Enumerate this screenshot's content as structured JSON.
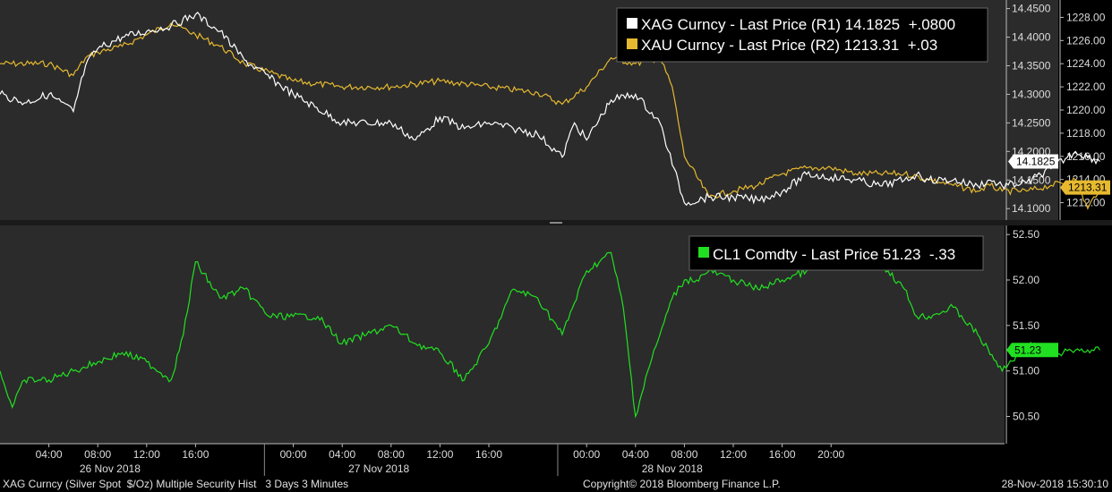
{
  "colors": {
    "background": "#000000",
    "panel": "#2b2b2b",
    "silver": "#ffffff",
    "gold": "#e6b92f",
    "oil": "#21e021"
  },
  "chart_data": [
    {
      "type": "line",
      "panel": "top",
      "grid": false,
      "legend_position": "top-right",
      "legend": [
        {
          "text": "XAG Curncy - Last Price (R1) 14.1825  +.0800",
          "swatch": "silver"
        },
        {
          "text": "XAU Curncy - Last Price (R2) 1213.31  +.03",
          "swatch": "gold"
        }
      ],
      "axis_r1": {
        "range": [
          14.08,
          14.465
        ],
        "ticks": [
          "14.4500",
          "14.4000",
          "14.3500",
          "14.3000",
          "14.2500",
          "14.2000",
          "14.1500",
          "14.1000"
        ]
      },
      "axis_r2": {
        "range": [
          1210.5,
          1229.5
        ],
        "ticks": [
          "1228.00",
          "1226.00",
          "1224.00",
          "1222.00",
          "1220.00",
          "1218.00",
          "1216.00",
          "1214.00",
          "1212.00"
        ]
      },
      "last_labels": [
        {
          "text": "14.1825",
          "series": "silver"
        },
        {
          "text": "1213.31",
          "series": "gold"
        }
      ],
      "series": [
        {
          "name": "XAG Curncy",
          "key": "silver",
          "axis": "R1",
          "x": [
            0,
            2,
            4,
            6,
            7,
            8,
            10,
            12,
            14,
            16,
            18,
            20,
            24,
            28,
            32,
            34,
            36,
            38,
            40,
            42,
            44,
            46,
            47,
            48,
            50,
            52,
            54,
            56,
            58,
            60,
            62,
            64,
            66,
            68,
            70,
            72,
            74,
            75,
            76,
            78,
            80,
            81,
            82,
            84,
            86,
            88,
            90
          ],
          "y": [
            14.3,
            14.285,
            14.3,
            14.27,
            14.35,
            14.38,
            14.4,
            14.41,
            14.42,
            14.44,
            14.41,
            14.36,
            14.3,
            14.25,
            14.25,
            14.22,
            14.26,
            14.24,
            14.25,
            14.24,
            14.23,
            14.19,
            14.25,
            14.22,
            14.29,
            14.3,
            14.25,
            14.11,
            14.12,
            14.12,
            14.115,
            14.13,
            14.16,
            14.155,
            14.15,
            14.14,
            14.15,
            14.16,
            14.15,
            14.15,
            14.14,
            14.15,
            14.14,
            14.145,
            14.17,
            14.2,
            14.1825
          ]
        },
        {
          "name": "XAU Curncy",
          "key": "gold",
          "axis": "R2",
          "x": [
            0,
            4,
            6,
            7,
            8,
            10,
            12,
            14,
            16,
            18,
            20,
            24,
            28,
            32,
            36,
            40,
            44,
            46,
            48,
            50,
            52,
            54,
            55,
            56,
            58,
            60,
            62,
            64,
            66,
            68,
            70,
            72,
            74,
            76,
            78,
            80,
            81,
            82,
            84,
            86,
            88,
            89,
            90
          ],
          "y": [
            1224.0,
            1224.0,
            1223.0,
            1224.5,
            1225.0,
            1225.5,
            1226.5,
            1227.5,
            1226.5,
            1225.5,
            1224.0,
            1222.5,
            1222.0,
            1222.0,
            1222.5,
            1222.0,
            1221.5,
            1220.5,
            1222.0,
            1224.5,
            1224.0,
            1224.5,
            1222.0,
            1216.0,
            1212.5,
            1213.0,
            1213.5,
            1214.5,
            1215.0,
            1215.0,
            1214.5,
            1214.5,
            1214.5,
            1214.0,
            1213.5,
            1213.0,
            1213.5,
            1213.0,
            1213.0,
            1213.5,
            1214.0,
            1211.5,
            1213.31
          ]
        }
      ]
    },
    {
      "type": "line",
      "panel": "bottom",
      "grid": false,
      "legend_position": "top-right",
      "legend": [
        {
          "text": "CL1 Comdty - Last Price 51.23  -.33",
          "swatch": "oil"
        }
      ],
      "axis": {
        "range": [
          50.2,
          52.6
        ],
        "ticks": [
          "52.50",
          "52.00",
          "51.50",
          "51.00",
          "50.50"
        ]
      },
      "last_labels": [
        {
          "text": "51.23",
          "series": "oil"
        }
      ],
      "series": [
        {
          "name": "CL1 Comdty",
          "key": "oil",
          "x": [
            0,
            1,
            2,
            4,
            6,
            8,
            10,
            12,
            14,
            15,
            16,
            18,
            20,
            22,
            24,
            26,
            28,
            30,
            32,
            34,
            36,
            38,
            40,
            42,
            44,
            46,
            48,
            50,
            51,
            52,
            53,
            54,
            55,
            56,
            57,
            58,
            60,
            62,
            64,
            66,
            68,
            70,
            72,
            74,
            75,
            76,
            78,
            80,
            82,
            84,
            86,
            87,
            88,
            90
          ],
          "y": [
            51.0,
            50.6,
            50.9,
            50.9,
            51.0,
            51.1,
            51.2,
            51.1,
            50.9,
            51.4,
            52.2,
            51.8,
            51.9,
            51.6,
            51.6,
            51.6,
            51.3,
            51.4,
            51.5,
            51.3,
            51.2,
            50.9,
            51.3,
            51.9,
            51.8,
            51.4,
            52.1,
            52.3,
            51.7,
            50.5,
            51.0,
            51.4,
            51.8,
            52.0,
            52.0,
            52.1,
            52.0,
            51.9,
            52.0,
            52.1,
            52.3,
            52.4,
            52.2,
            51.9,
            51.6,
            51.6,
            51.7,
            51.4,
            51.0,
            51.3,
            51.2,
            51.2,
            51.23,
            51.23
          ]
        }
      ]
    }
  ],
  "x_axis": {
    "hour_labels": [
      {
        "label": "04:00",
        "pos": 4
      },
      {
        "label": "08:00",
        "pos": 8
      },
      {
        "label": "12:00",
        "pos": 12
      },
      {
        "label": "16:00",
        "pos": 16
      },
      {
        "label": "00:00",
        "pos": 24
      },
      {
        "label": "04:00",
        "pos": 28
      },
      {
        "label": "08:00",
        "pos": 32
      },
      {
        "label": "12:00",
        "pos": 36
      },
      {
        "label": "16:00",
        "pos": 40
      },
      {
        "label": "00:00",
        "pos": 48
      },
      {
        "label": "04:00",
        "pos": 52
      },
      {
        "label": "08:00",
        "pos": 56
      },
      {
        "label": "12:00",
        "pos": 60
      },
      {
        "label": "16:00",
        "pos": 64
      },
      {
        "label": "20:00",
        "pos": 68
      }
    ],
    "day_labels": [
      {
        "label": "26 Nov 2018",
        "pos": 9
      },
      {
        "label": "27 Nov 2018",
        "pos": 31
      },
      {
        "label": "28 Nov 2018",
        "pos": 55
      }
    ],
    "day_separators": [
      19,
      43
    ]
  },
  "footer": {
    "left": "XAG Curncy (Silver Spot  $/Oz) Multiple Security Hist   3 Days 3 Minutes",
    "center": "Copyright© 2018 Bloomberg Finance L.P.",
    "right": "28-Nov-2018 15:30:10"
  }
}
